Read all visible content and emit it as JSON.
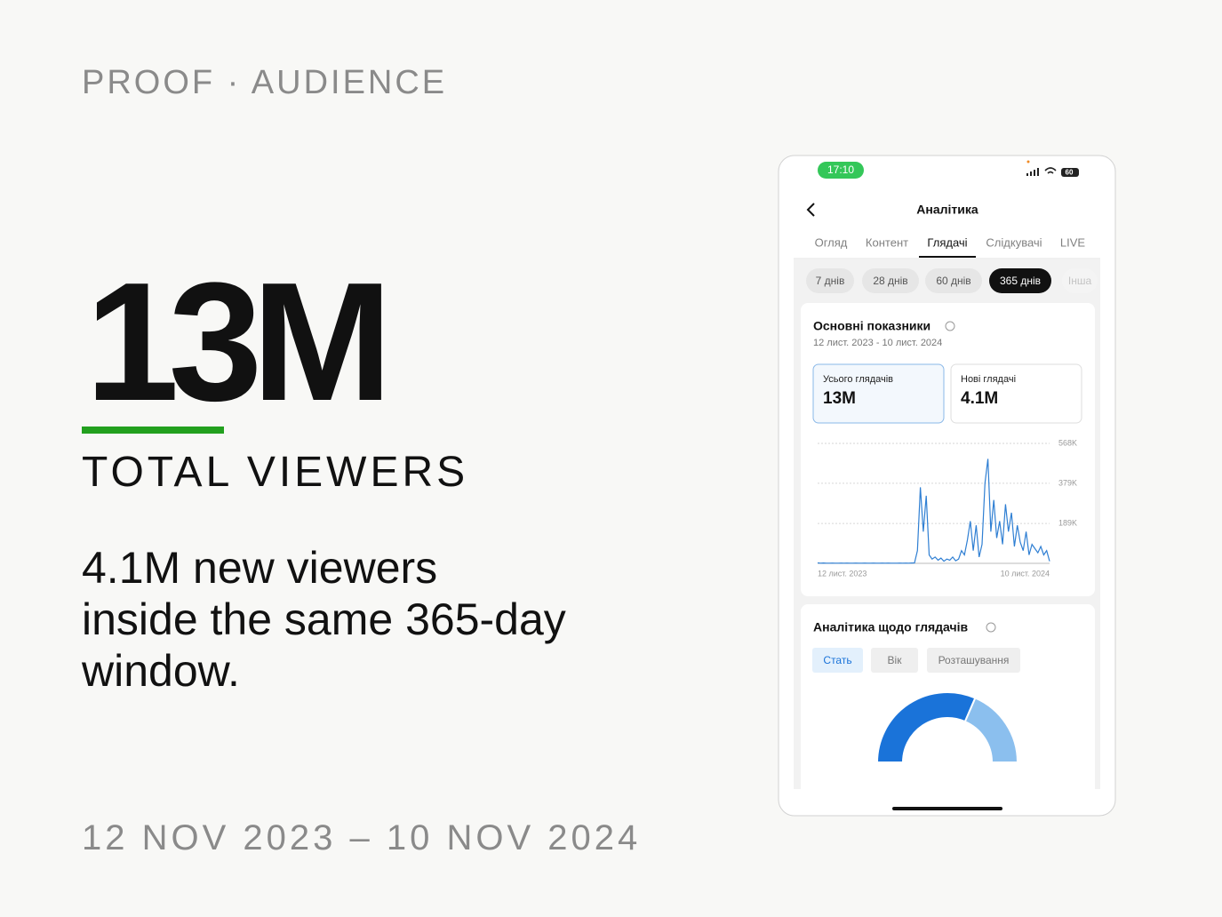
{
  "slide": {
    "eyebrow": "PROOF · AUDIENCE",
    "headline": "13M",
    "headline_label": "TOTAL VIEWERS",
    "description_lines": [
      "4.1M new viewers",
      "inside the same 365-day",
      "window."
    ],
    "date_range": "12 NOV 2023 – 10 NOV 2024"
  },
  "phone": {
    "status_time": "17:10",
    "battery": "60",
    "title": "Аналітика",
    "tabs": [
      {
        "label": "Огляд",
        "active": false
      },
      {
        "label": "Контент",
        "active": false
      },
      {
        "label": "Глядачі",
        "active": true
      },
      {
        "label": "Слідкувачі",
        "active": false
      },
      {
        "label": "LIVE",
        "active": false
      }
    ],
    "period_chips": [
      {
        "label": "7 днів",
        "active": false
      },
      {
        "label": "28 днів",
        "active": false
      },
      {
        "label": "60 днів",
        "active": false
      },
      {
        "label": "365 днів",
        "active": true
      },
      {
        "label": "Інша",
        "active": false
      }
    ],
    "metrics_card": {
      "title": "Основні показники",
      "date_range": "12 лист. 2023 - 10 лист. 2024",
      "metrics": [
        {
          "label": "Усього глядачів",
          "value": "13M"
        },
        {
          "label": "Нові глядачі",
          "value": "4.1M"
        }
      ]
    },
    "audience_card": {
      "title": "Аналітика щодо глядачів",
      "chips": [
        {
          "label": "Стать",
          "active": true
        },
        {
          "label": "Вік",
          "active": false
        },
        {
          "label": "Розташування",
          "active": false
        }
      ]
    }
  },
  "chart_data": [
    {
      "type": "line",
      "color": "#2f7fd3",
      "grid": true,
      "ylim": [
        0,
        568000
      ],
      "yticks": [
        {
          "value": 189000,
          "label": "189K"
        },
        {
          "value": 379000,
          "label": "379K"
        },
        {
          "value": 568000,
          "label": "568K"
        }
      ],
      "categories": [
        "12 лист. 2023",
        null,
        null,
        null,
        null,
        null,
        null,
        null,
        null,
        null,
        null,
        null,
        null,
        null,
        null,
        null,
        null,
        null,
        null,
        null,
        null,
        null,
        null,
        null,
        null,
        null,
        null,
        null,
        null,
        null,
        null,
        null,
        null,
        null,
        null,
        null,
        null,
        null,
        null,
        null,
        null,
        null,
        null,
        null,
        null,
        null,
        null,
        null,
        null,
        null,
        null,
        null,
        null,
        null,
        null,
        null,
        null,
        null,
        null,
        null,
        null,
        null,
        null,
        null,
        null,
        null,
        null,
        null,
        null,
        null,
        null,
        null,
        null,
        null,
        null,
        null,
        null,
        null,
        null,
        "10 лист. 2024"
      ],
      "values": [
        2000,
        1000,
        1500,
        1000,
        800,
        1200,
        1000,
        900,
        1100,
        1000,
        1300,
        1000,
        900,
        1200,
        1000,
        1000,
        1100,
        900,
        1000,
        1200,
        1000,
        900,
        1100,
        1000,
        1200,
        1000,
        900,
        1000,
        1100,
        1000,
        1200,
        1000,
        1500,
        2000,
        60000,
        360000,
        150000,
        320000,
        40000,
        20000,
        30000,
        15000,
        25000,
        10000,
        20000,
        15000,
        30000,
        12000,
        20000,
        60000,
        40000,
        110000,
        200000,
        60000,
        180000,
        30000,
        90000,
        380000,
        495000,
        150000,
        300000,
        120000,
        200000,
        90000,
        280000,
        150000,
        240000,
        80000,
        180000,
        100000,
        60000,
        150000,
        40000,
        90000,
        70000,
        50000,
        80000,
        40000,
        60000,
        10000
      ]
    },
    {
      "type": "pie",
      "values": [
        63,
        37
      ],
      "colors": [
        "#1a73d9",
        "#8bbfee"
      ]
    }
  ]
}
